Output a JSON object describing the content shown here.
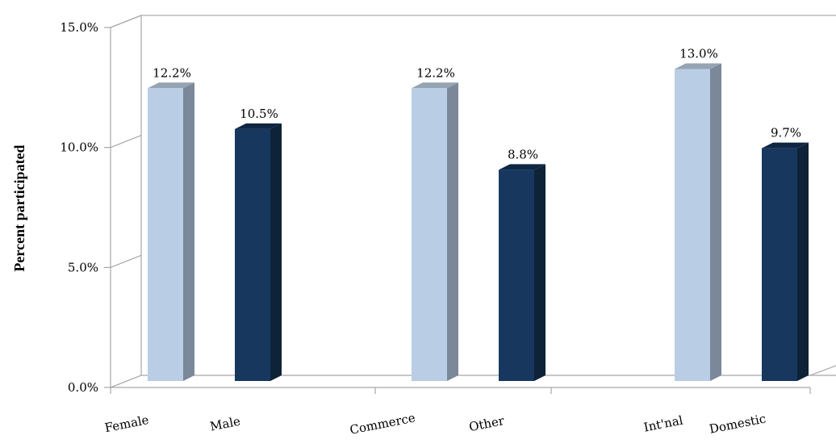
{
  "chart_data": {
    "type": "bar",
    "style": "3d-column",
    "ylabel": "Percent participated",
    "xlabel": "",
    "ylim": [
      0,
      15
    ],
    "y_ticks": [
      "0.0%",
      "5.0%",
      "10.0%",
      "15.0%"
    ],
    "y_tick_values": [
      0,
      5,
      10,
      15
    ],
    "grid": false,
    "legend": "none",
    "groups": [
      {
        "bars": [
          {
            "category": "Female",
            "value": 12.2,
            "label": "12.2%",
            "shade": "light"
          },
          {
            "category": "Male",
            "value": 10.5,
            "label": "10.5%",
            "shade": "dark"
          }
        ]
      },
      {
        "bars": [
          {
            "category": "Commerce",
            "value": 12.2,
            "label": "12.2%",
            "shade": "light"
          },
          {
            "category": "Other",
            "value": 8.8,
            "label": "8.8%",
            "shade": "dark"
          }
        ]
      },
      {
        "bars": [
          {
            "category": "Int'nal",
            "value": 13.0,
            "label": "13.0%",
            "shade": "light"
          },
          {
            "category": "Domestic",
            "value": 9.7,
            "label": "9.7%",
            "shade": "dark"
          }
        ]
      }
    ],
    "colors": {
      "light_front": "#B9CDE5",
      "light_side": "#7A8899",
      "light_top": "#95A3B3",
      "dark_front": "#17375E",
      "dark_side": "#0E2238",
      "dark_top": "#0F2644",
      "axis": "#A6A6A6"
    }
  }
}
